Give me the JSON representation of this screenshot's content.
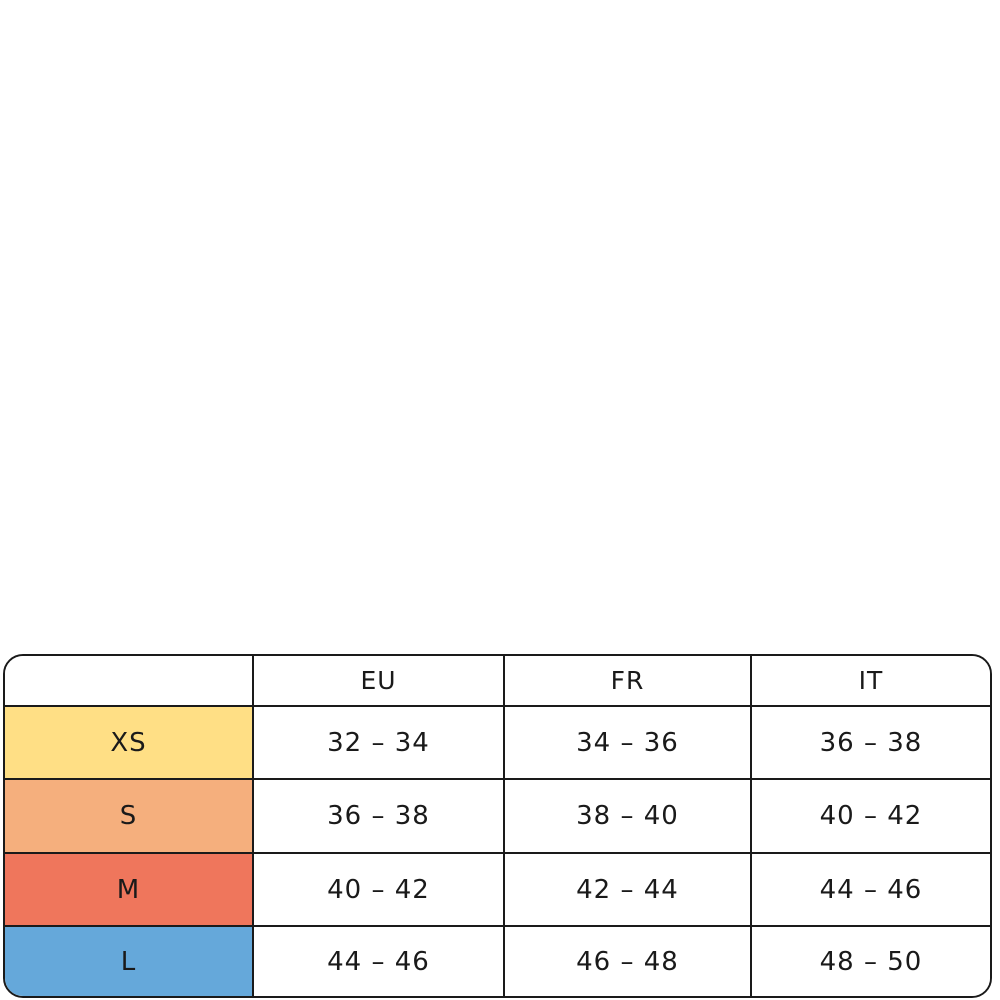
{
  "table": {
    "headers": [
      "",
      "EU",
      "FR",
      "IT"
    ],
    "rows": [
      {
        "size": "XS",
        "color": "#FFDF85",
        "values": [
          "32 – 34",
          "34 – 36",
          "36 – 38"
        ]
      },
      {
        "size": "S",
        "color": "#F5AF7D",
        "values": [
          "36 – 38",
          "38 – 40",
          "40 – 42"
        ]
      },
      {
        "size": "M",
        "color": "#EF765C",
        "values": [
          "40 – 42",
          "42 – 44",
          "44 – 46"
        ]
      },
      {
        "size": "L",
        "color": "#65A8DA",
        "values": [
          "44 – 46",
          "46 – 48",
          "48 – 50"
        ]
      }
    ]
  }
}
